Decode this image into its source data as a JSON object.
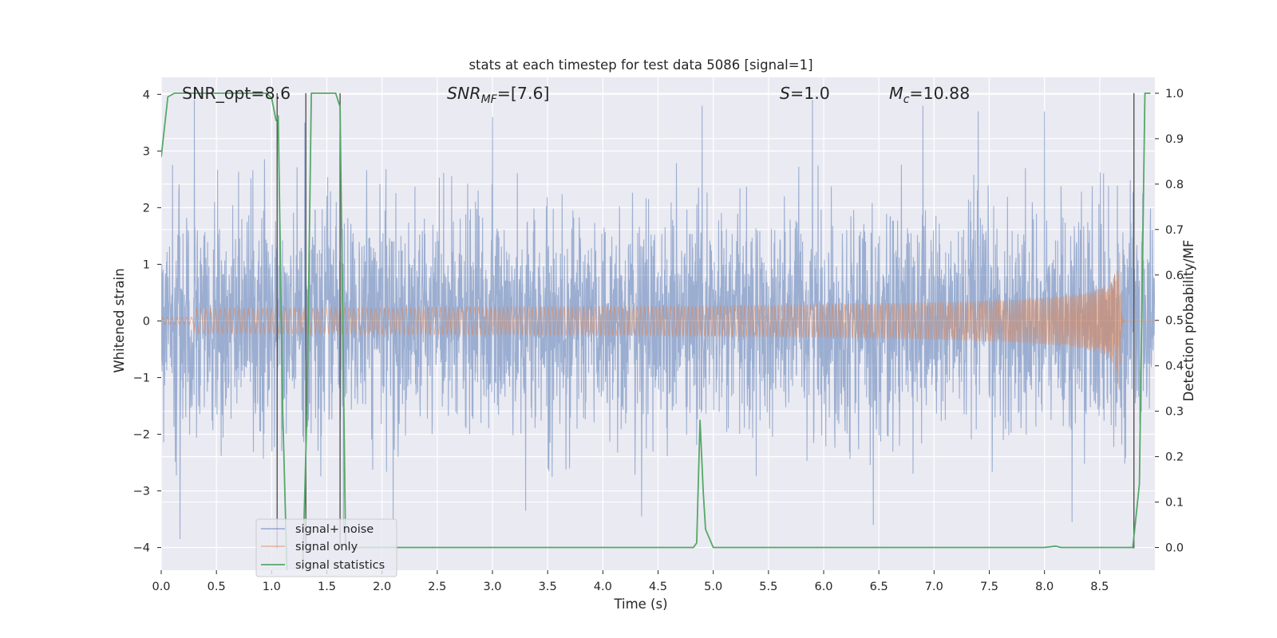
{
  "chart_data": {
    "type": "line",
    "title": "stats at each timestep for test data 5086 [signal=1]",
    "xlabel": "Time (s)",
    "ylabel": "Whitened strain",
    "y2label": "Detection probability/MF",
    "xlim": [
      0,
      9.0
    ],
    "ylim": [
      -4.4,
      4.3
    ],
    "y2lim": [
      -0.05,
      1.035
    ],
    "x_ticks": [
      "0.0",
      "0.5",
      "1.0",
      "1.5",
      "2.0",
      "2.5",
      "3.0",
      "3.5",
      "4.0",
      "4.5",
      "5.0",
      "5.5",
      "6.0",
      "6.5",
      "7.0",
      "7.5",
      "8.0",
      "8.5"
    ],
    "y_ticks": [
      "−4",
      "−3",
      "−2",
      "−1",
      "0",
      "1",
      "2",
      "3",
      "4"
    ],
    "y2_ticks": [
      "0.0",
      "0.1",
      "0.2",
      "0.3",
      "0.4",
      "0.5",
      "0.6",
      "0.7",
      "0.8",
      "0.9",
      "1.0"
    ],
    "grid": true,
    "legend_position": "lower-left",
    "annotations": {
      "snr_opt": "SNR_opt=8.6",
      "snr_mf_main": "SNR",
      "snr_mf_sub": "MF",
      "snr_mf_value": "=[7.6]",
      "s_main": "S",
      "s_value": "=1.0",
      "mc_main": "M",
      "mc_sub": "c",
      "mc_value": "=10.88"
    },
    "series": [
      {
        "name": "signal+ noise",
        "color": "#4c72b0",
        "description_values": "dense whitened noise, amplitude mostly within ±2.5, peaks near ±3.8",
        "envelope_amplitude": 2.6,
        "peak_positive": [
          [
            0.3,
            3.9
          ],
          [
            1.3,
            3.5
          ],
          [
            3.0,
            3.6
          ],
          [
            4.9,
            3.8
          ],
          [
            5.9,
            3.9
          ],
          [
            6.9,
            3.8
          ],
          [
            7.4,
            3.7
          ],
          [
            8.0,
            3.7
          ]
        ],
        "peak_negative": [
          [
            0.17,
            -3.85
          ],
          [
            1.65,
            -3.7
          ],
          [
            2.1,
            -3.5
          ],
          [
            3.3,
            -3.35
          ],
          [
            4.35,
            -3.45
          ],
          [
            6.45,
            -3.6
          ],
          [
            8.25,
            -3.55
          ]
        ]
      },
      {
        "name": "signal only",
        "color": "#dd8452",
        "description_values": "chirp signal near 0, amplitude grows toward merger at ~8.68 s",
        "merger_time": 8.68,
        "peak_amplitude": 1.5
      },
      {
        "name": "signal statistics",
        "color": "#55a868",
        "points": [
          [
            0.0,
            0.86
          ],
          [
            0.06,
            0.992
          ],
          [
            0.12,
            1.0
          ],
          [
            0.5,
            1.0
          ],
          [
            0.95,
            1.0
          ],
          [
            1.0,
            0.99
          ],
          [
            1.04,
            0.94
          ],
          [
            1.06,
            0.95
          ],
          [
            1.1,
            0.3
          ],
          [
            1.14,
            -0.06
          ],
          [
            1.28,
            -0.06
          ],
          [
            1.32,
            0.3
          ],
          [
            1.36,
            1.0
          ],
          [
            1.58,
            1.0
          ],
          [
            1.62,
            0.97
          ],
          [
            1.67,
            0.0
          ],
          [
            1.72,
            0.0
          ],
          [
            4.82,
            0.0
          ],
          [
            4.85,
            0.01
          ],
          [
            4.88,
            0.28
          ],
          [
            4.91,
            0.12
          ],
          [
            4.93,
            0.04
          ],
          [
            5.0,
            0.0
          ],
          [
            7.4,
            0.0
          ],
          [
            8.0,
            0.0
          ],
          [
            8.1,
            0.003
          ],
          [
            8.15,
            0.0
          ],
          [
            8.8,
            0.0
          ],
          [
            8.86,
            0.14
          ],
          [
            8.91,
            1.0
          ],
          [
            8.96,
            1.0
          ]
        ]
      }
    ],
    "vertical_markers_x": [
      1.05,
      1.31,
      1.62,
      8.81
    ]
  }
}
